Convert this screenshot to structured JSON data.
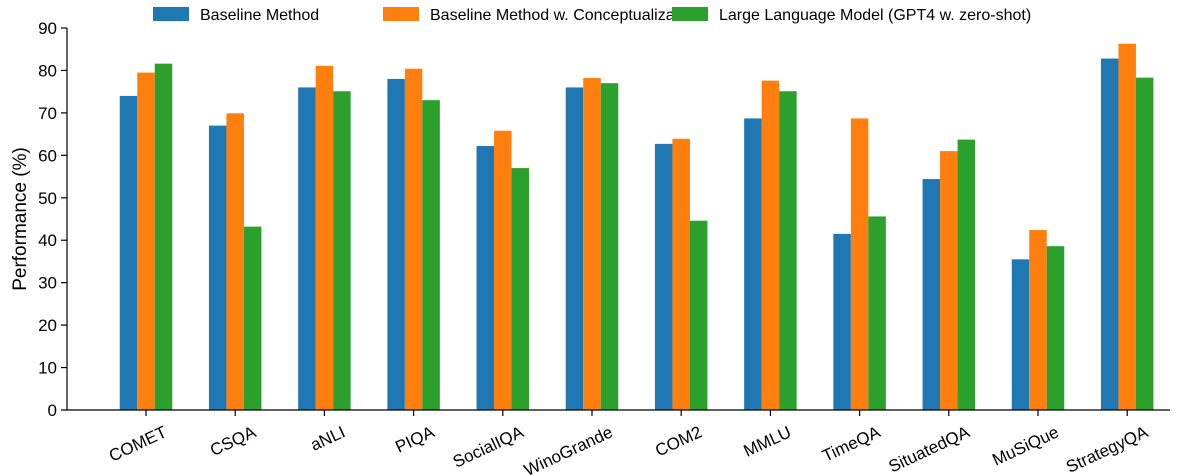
{
  "chart_data": {
    "type": "bar",
    "title": "",
    "xlabel": "",
    "ylabel": "Performance (%)",
    "ylim": [
      0,
      90
    ],
    "yticks": [
      0,
      10,
      20,
      30,
      40,
      50,
      60,
      70,
      80,
      90
    ],
    "grid": false,
    "legend_position": "top",
    "categories": [
      "COMET",
      "CSQA",
      "aNLI",
      "PIQA",
      "SocialIQA",
      "WinoGrande",
      "COM2",
      "MMLU",
      "TimeQA",
      "SituatedQA",
      "MuSiQue",
      "StrategyQA"
    ],
    "series": [
      {
        "name": "Baseline Method",
        "color": "#1f77b4",
        "values": [
          74.0,
          67.0,
          76.0,
          78.0,
          62.2,
          76.0,
          62.7,
          68.7,
          41.5,
          54.4,
          35.5,
          82.8
        ]
      },
      {
        "name": "Baseline Method w. Conceptualization",
        "color": "#ff7f0e",
        "values": [
          79.5,
          69.9,
          81.1,
          80.4,
          65.8,
          78.2,
          63.9,
          77.6,
          68.7,
          61.0,
          42.4,
          86.3
        ]
      },
      {
        "name": "Large Language Model (GPT4 w. zero-shot)",
        "color": "#2ca02c",
        "values": [
          81.6,
          43.2,
          75.1,
          73.0,
          57.0,
          77.0,
          44.6,
          75.1,
          45.6,
          63.7,
          38.6,
          78.3
        ]
      }
    ]
  }
}
